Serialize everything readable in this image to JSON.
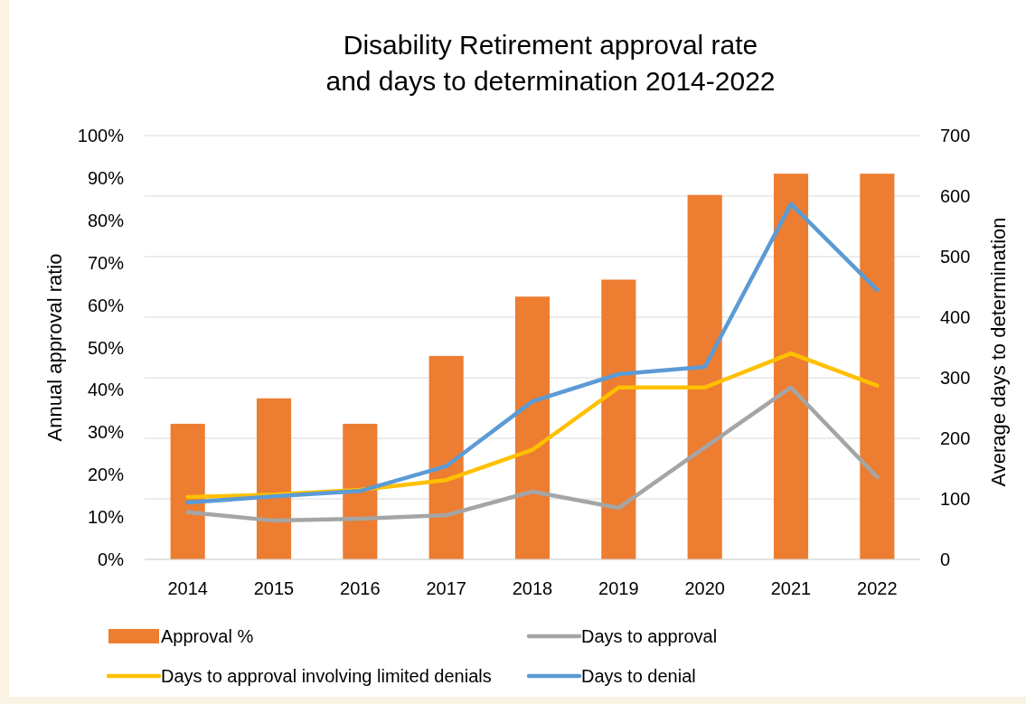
{
  "chart_data": {
    "type": "bar",
    "title": "Disability Retirement approval rate\nand days to determination 2014-2022",
    "ylabel": "Annual approval ratio",
    "y2label": "Average days to determination",
    "categories": [
      "2014",
      "2015",
      "2016",
      "2017",
      "2018",
      "2019",
      "2020",
      "2021",
      "2022"
    ],
    "series": [
      {
        "name": "Approval %",
        "color": "#ed7d31",
        "values": [
          32,
          38,
          32,
          48,
          62,
          66,
          86,
          91,
          91
        ]
      },
      {
        "name": "Days to approval",
        "type": "line",
        "axis": "y2",
        "color": "#a5a5a5",
        "values": [
          78,
          64,
          67,
          73,
          112,
          85,
          185,
          284,
          136
        ]
      },
      {
        "name": "Days to approval involving limited denials",
        "type": "line",
        "axis": "y2",
        "color": "#ffc000",
        "values": [
          103,
          107,
          115,
          131,
          181,
          284,
          284,
          340,
          287
        ]
      },
      {
        "name": "Days to denial",
        "type": "line",
        "axis": "y2",
        "color": "#5b9bd5",
        "values": [
          94,
          104,
          113,
          154,
          261,
          306,
          318,
          587,
          445
        ]
      }
    ],
    "ylim": [
      0,
      100
    ],
    "yticks": [
      {
        "value": 0,
        "label": "0%"
      },
      {
        "value": 10,
        "label": "10%"
      },
      {
        "value": 20,
        "label": "20%"
      },
      {
        "value": 30,
        "label": "30%"
      },
      {
        "value": 40,
        "label": "40%"
      },
      {
        "value": 50,
        "label": "50%"
      },
      {
        "value": 60,
        "label": "60%"
      },
      {
        "value": 70,
        "label": "70%"
      },
      {
        "value": 80,
        "label": "80%"
      },
      {
        "value": 90,
        "label": "90%"
      },
      {
        "value": 100,
        "label": "100%"
      }
    ],
    "y2lim": [
      0,
      700
    ],
    "y2ticks": [
      0,
      100,
      200,
      300,
      400,
      500,
      600,
      700
    ],
    "grid": true,
    "legend": "bottom",
    "marker": "none",
    "line_style": "solid"
  }
}
